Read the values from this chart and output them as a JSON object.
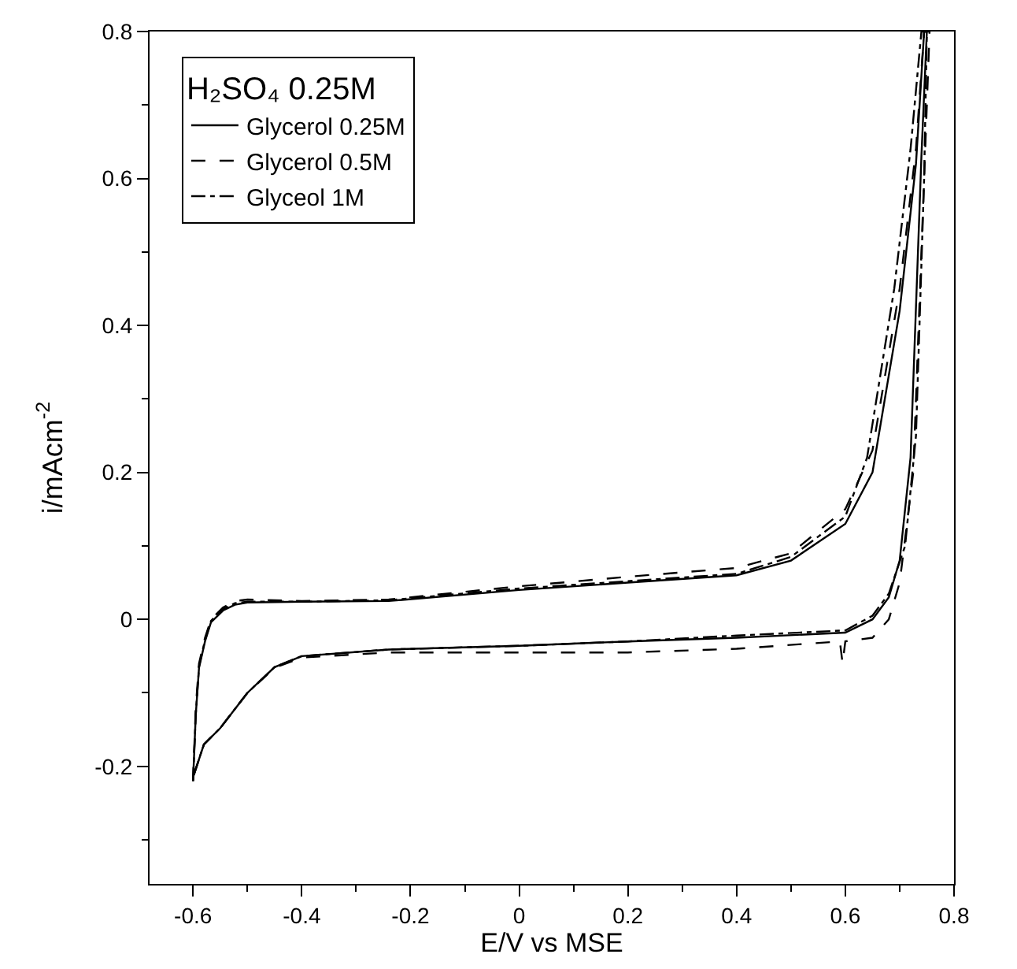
{
  "chart_data": {
    "type": "line",
    "xlabel": "E/V vs MSE",
    "ylabel": "i/mAcm$^{-2}$",
    "legend_title": "H₂SO₄ 0.25M",
    "legend": "top left",
    "xlim": [
      -0.68,
      0.8
    ],
    "ylim": [
      -0.36,
      0.8
    ],
    "xticks": [
      -0.6,
      {
        "value": -0.5,
        "label": null
      },
      -0.4,
      {
        "value": -0.3,
        "label": null
      },
      -0.2,
      {
        "value": -0.1,
        "label": null
      },
      0,
      {
        "value": 0.1,
        "label": null
      },
      0.2,
      {
        "value": 0.3,
        "label": null
      },
      0.4,
      {
        "value": 0.5,
        "label": null
      },
      0.6,
      {
        "value": 0.7,
        "label": null
      },
      0.8
    ],
    "yticks": [
      {
        "value": -0.3,
        "label": null
      },
      -0.2,
      {
        "value": -0.1,
        "label": null
      },
      0,
      {
        "value": 0.1,
        "label": null
      },
      0.2,
      {
        "value": 0.3,
        "label": null
      },
      0.4,
      {
        "value": 0.5,
        "label": null
      },
      0.6,
      {
        "value": 0.7,
        "label": null
      },
      0.8
    ],
    "series": [
      {
        "name": "Glycerol 0.25M",
        "color": "#000000",
        "line_style": "solid",
        "x": [
          -0.6,
          -0.595,
          -0.589,
          -0.578,
          -0.567,
          -0.545,
          -0.523,
          -0.5,
          -0.4,
          -0.24,
          0,
          0.2,
          0.4,
          0.5,
          0.6,
          0.65,
          0.7,
          0.73,
          0.745,
          0.75,
          0.74,
          0.72,
          0.7,
          0.68,
          0.65,
          0.6,
          0.4,
          0.2,
          0,
          -0.24,
          -0.4,
          -0.45,
          -0.5,
          -0.55,
          -0.58,
          -0.6
        ],
        "values": [
          -0.22,
          -0.13,
          -0.066,
          -0.03,
          -0.004,
          0.012,
          0.02,
          0.023,
          0.024,
          0.025,
          0.04,
          0.05,
          0.06,
          0.08,
          0.13,
          0.2,
          0.42,
          0.62,
          0.8,
          0.8,
          0.63,
          0.22,
          0.08,
          0.03,
          0.0,
          -0.018,
          -0.025,
          -0.03,
          -0.036,
          -0.041,
          -0.05,
          -0.065,
          -0.1,
          -0.148,
          -0.17,
          -0.215
        ]
      },
      {
        "name": "Glycerol 0.5M",
        "color": "#000000",
        "line_style": "dashed",
        "x": [
          -0.6,
          -0.595,
          -0.589,
          -0.578,
          -0.567,
          -0.545,
          -0.523,
          -0.5,
          -0.4,
          -0.24,
          0,
          0.2,
          0.4,
          0.5,
          0.6,
          0.65,
          0.7,
          0.73,
          0.745,
          0.755,
          0.745,
          0.725,
          0.7,
          0.68,
          0.65,
          0.6,
          0.595,
          0.59,
          0.4,
          0.2,
          0,
          -0.24,
          -0.4,
          -0.45,
          -0.5,
          -0.55,
          -0.58,
          -0.6
        ],
        "values": [
          -0.22,
          -0.12,
          -0.06,
          -0.025,
          0.0,
          0.016,
          0.025,
          0.027,
          0.025,
          0.027,
          0.045,
          0.058,
          0.07,
          0.09,
          0.15,
          0.23,
          0.45,
          0.64,
          0.8,
          0.8,
          0.6,
          0.2,
          0.05,
          0.0,
          -0.025,
          -0.03,
          -0.06,
          -0.03,
          -0.04,
          -0.045,
          -0.045,
          -0.045,
          -0.052,
          -0.066,
          -0.1,
          -0.148,
          -0.17,
          -0.215
        ]
      },
      {
        "name": "Glyceol 1M",
        "color": "#000000",
        "line_style": "dashdot",
        "x": [
          -0.6,
          -0.595,
          -0.589,
          -0.578,
          -0.567,
          -0.545,
          -0.523,
          -0.5,
          -0.4,
          -0.24,
          0,
          0.2,
          0.4,
          0.5,
          0.6,
          0.64,
          0.69,
          0.72,
          0.74,
          0.75,
          0.745,
          0.73,
          0.71,
          0.68,
          0.65,
          0.6,
          0.4,
          0.2,
          0,
          -0.24,
          -0.4,
          -0.45,
          -0.5,
          -0.55,
          -0.58,
          -0.6
        ],
        "values": [
          -0.22,
          -0.13,
          -0.064,
          -0.028,
          -0.002,
          0.014,
          0.022,
          0.024,
          0.024,
          0.026,
          0.042,
          0.052,
          0.062,
          0.085,
          0.14,
          0.22,
          0.45,
          0.64,
          0.8,
          0.8,
          0.6,
          0.25,
          0.1,
          0.035,
          0.005,
          -0.015,
          -0.022,
          -0.03,
          -0.036,
          -0.041,
          -0.05,
          -0.065,
          -0.1,
          -0.148,
          -0.17,
          -0.215
        ]
      }
    ]
  }
}
